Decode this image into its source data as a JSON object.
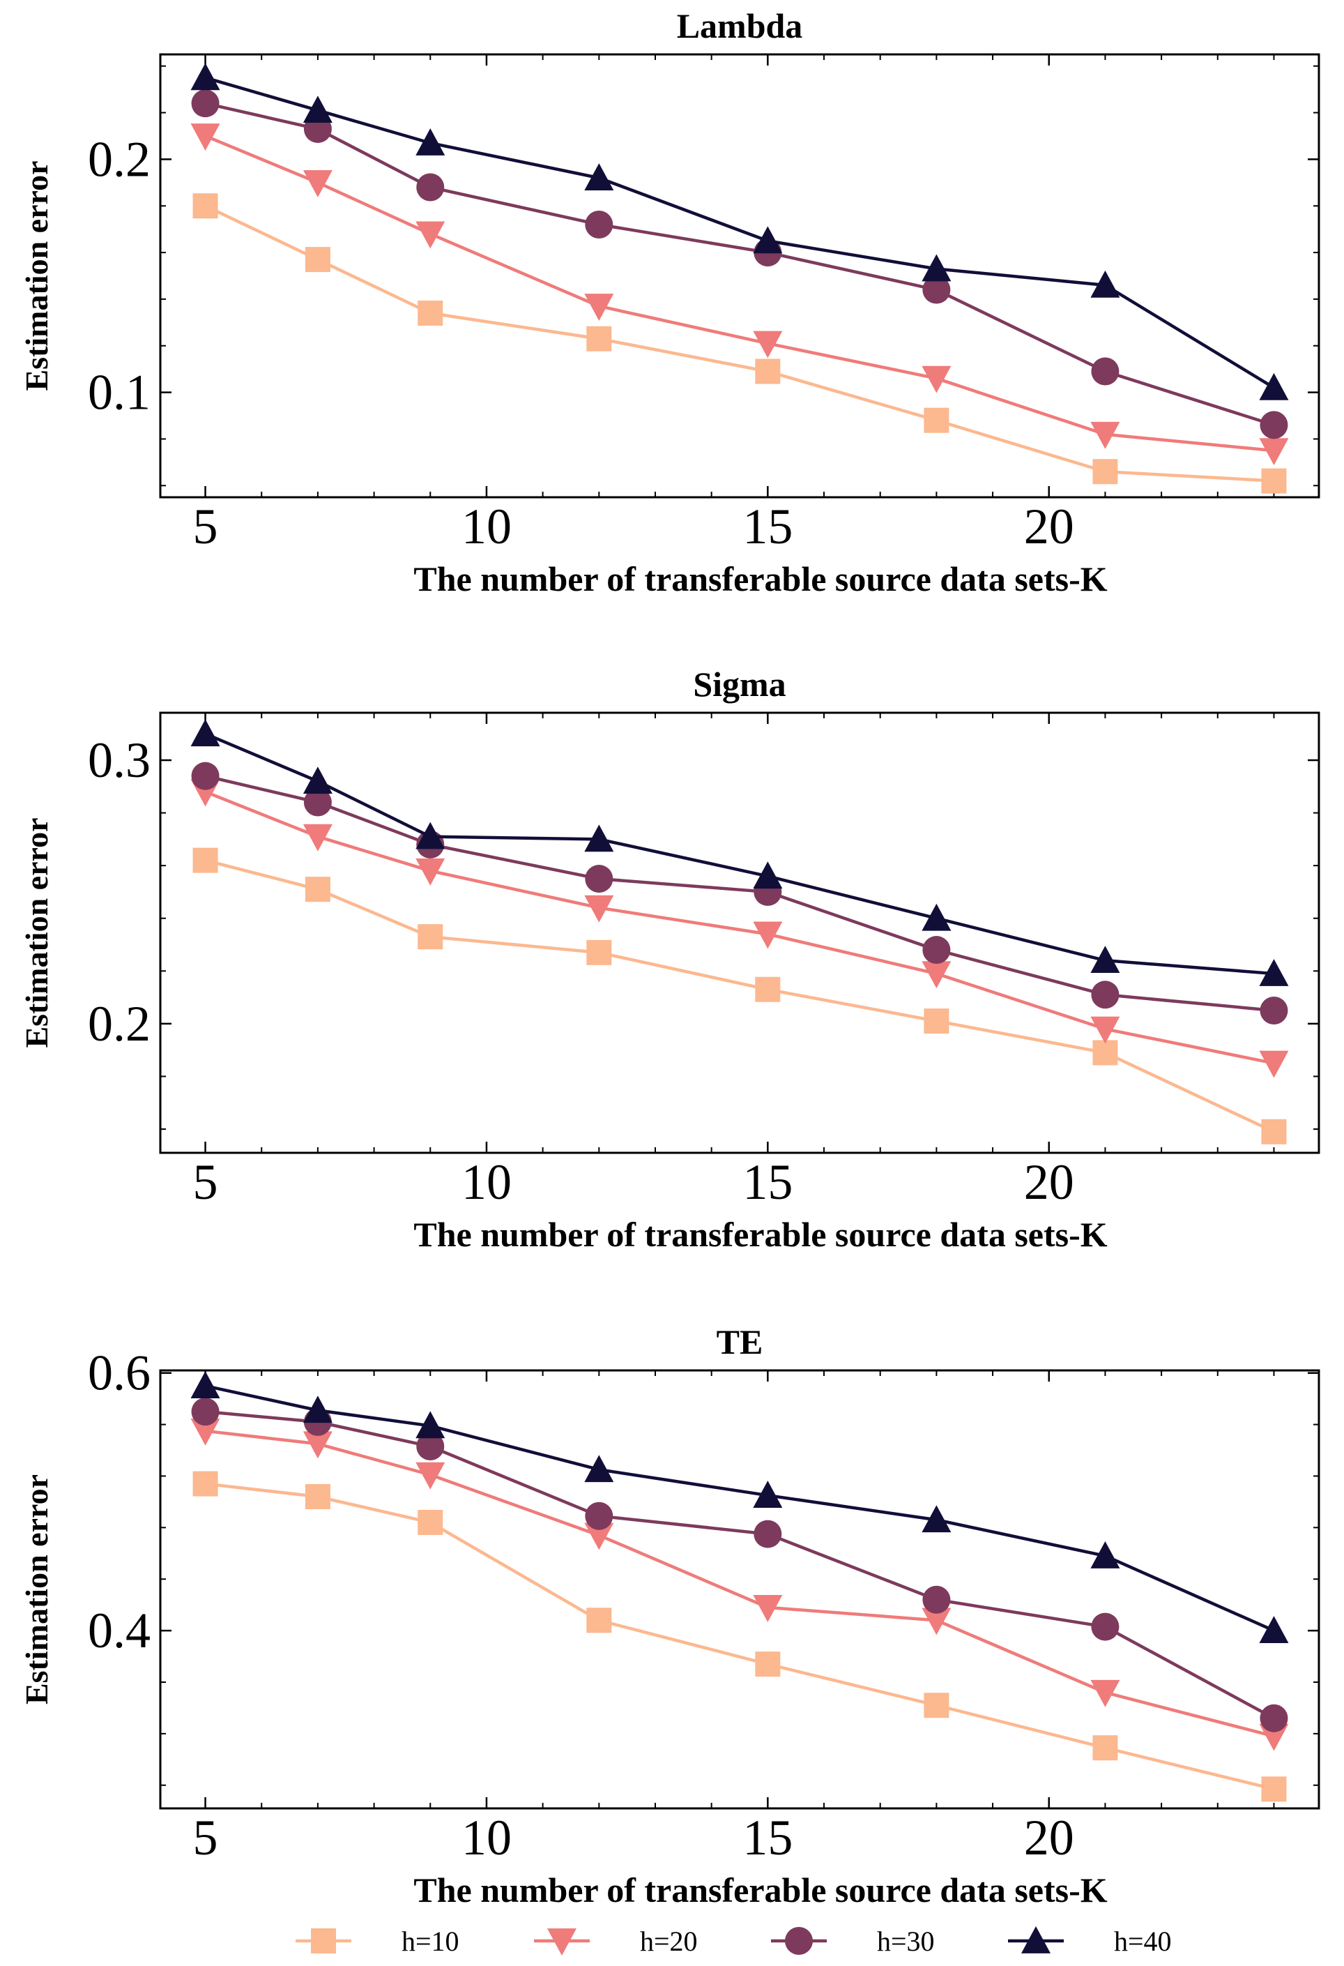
{
  "colors": {
    "h=10": "#fcb88f",
    "h=20": "#ef7b7a",
    "h=30": "#7d3a5c",
    "h=40": "#110f38"
  },
  "markers": {
    "h=10": "square",
    "h=20": "triangle-down",
    "h=30": "circle",
    "h=40": "triangle-up"
  },
  "legend": {
    "entries": [
      "h=10",
      "h=20",
      "h=30",
      "h=40"
    ],
    "placement": "bottom-center"
  },
  "chart_data": [
    {
      "type": "line",
      "title": "Lambda",
      "xlabel": "The number of transferable source data sets-K",
      "ylabel": "Estimation error",
      "x": [
        5,
        7,
        9,
        12,
        15,
        18,
        21,
        24
      ],
      "xlim": [
        4.2,
        24.8
      ],
      "ylim": [
        0.055,
        0.245
      ],
      "xticks": [
        5,
        10,
        15,
        20
      ],
      "yticks": [
        0.1,
        0.2
      ],
      "ytick_labels": [
        "0.1",
        "0.2"
      ],
      "series": [
        {
          "name": "h=10",
          "values": [
            0.18,
            0.157,
            0.134,
            0.123,
            0.109,
            0.088,
            0.066,
            0.062
          ]
        },
        {
          "name": "h=20",
          "values": [
            0.21,
            0.19,
            0.168,
            0.137,
            0.121,
            0.106,
            0.082,
            0.075
          ]
        },
        {
          "name": "h=30",
          "values": [
            0.224,
            0.213,
            0.188,
            0.172,
            0.16,
            0.144,
            0.109,
            0.086
          ]
        },
        {
          "name": "h=40",
          "values": [
            0.235,
            0.221,
            0.207,
            0.192,
            0.165,
            0.153,
            0.146,
            0.102
          ]
        }
      ]
    },
    {
      "type": "line",
      "title": "Sigma",
      "xlabel": "The number of transferable source data sets-K",
      "ylabel": "Estimation error",
      "x": [
        5,
        7,
        9,
        12,
        15,
        18,
        21,
        24
      ],
      "xlim": [
        4.2,
        24.8
      ],
      "ylim": [
        0.151,
        0.318
      ],
      "xticks": [
        5,
        10,
        15,
        20
      ],
      "yticks": [
        0.2,
        0.3
      ],
      "ytick_labels": [
        "0.2",
        "0.3"
      ],
      "series": [
        {
          "name": "h=10",
          "values": [
            0.262,
            0.251,
            0.233,
            0.227,
            0.213,
            0.201,
            0.189,
            0.159
          ]
        },
        {
          "name": "h=20",
          "values": [
            0.288,
            0.271,
            0.258,
            0.244,
            0.234,
            0.219,
            0.198,
            0.185
          ]
        },
        {
          "name": "h=30",
          "values": [
            0.294,
            0.284,
            0.268,
            0.255,
            0.25,
            0.228,
            0.211,
            0.205
          ]
        },
        {
          "name": "h=40",
          "values": [
            0.31,
            0.292,
            0.271,
            0.27,
            0.256,
            0.24,
            0.224,
            0.219
          ]
        }
      ]
    },
    {
      "type": "line",
      "title": "TE",
      "xlabel": "The number of transferable source data sets-K",
      "ylabel": "Estimation error",
      "x": [
        5,
        7,
        9,
        12,
        15,
        18,
        21,
        24
      ],
      "xlim": [
        4.2,
        24.8
      ],
      "ylim": [
        0.262,
        0.602
      ],
      "xticks": [
        5,
        10,
        15,
        20
      ],
      "yticks": [
        0.4,
        0.6
      ],
      "ytick_labels": [
        "0.4",
        "0.6"
      ],
      "series": [
        {
          "name": "h=10",
          "values": [
            0.514,
            0.504,
            0.484,
            0.408,
            0.374,
            0.342,
            0.309,
            0.277
          ]
        },
        {
          "name": "h=20",
          "values": [
            0.555,
            0.545,
            0.521,
            0.474,
            0.418,
            0.408,
            0.352,
            0.318
          ]
        },
        {
          "name": "h=30",
          "values": [
            0.57,
            0.562,
            0.543,
            0.489,
            0.475,
            0.424,
            0.403,
            0.332
          ]
        },
        {
          "name": "h=40",
          "values": [
            0.59,
            0.571,
            0.559,
            0.525,
            0.505,
            0.486,
            0.458,
            0.4
          ]
        }
      ]
    }
  ]
}
